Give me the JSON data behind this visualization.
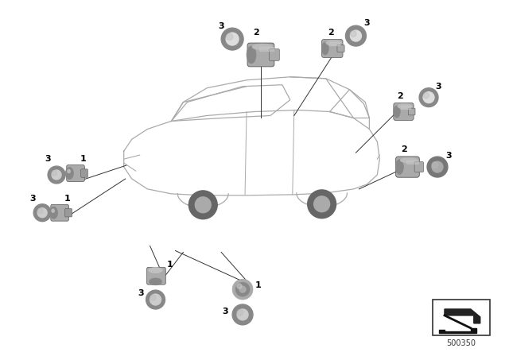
{
  "bg_color": "#ffffff",
  "part_number": "500350",
  "figsize": [
    6.4,
    4.48
  ],
  "dpi": 100,
  "car_line_color": "#aaaaaa",
  "sensor_body_light": "#c8c8c8",
  "sensor_body_mid": "#aaaaaa",
  "sensor_body_dark": "#888888",
  "sensor_ring_outer": "#999999",
  "sensor_ring_inner": "#cccccc",
  "line_color": "#333333",
  "label_color": "#000000",
  "label_fontsize": 8,
  "label_fontweight": "bold"
}
